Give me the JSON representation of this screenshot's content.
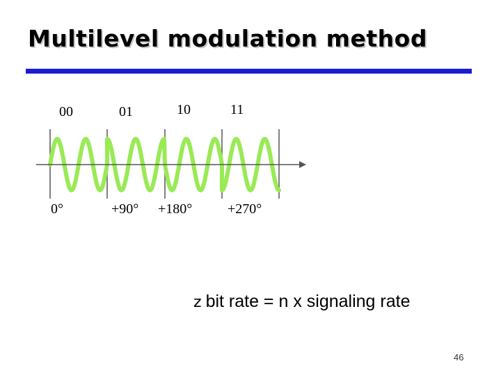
{
  "slide": {
    "title": "Multilevel modulation method",
    "bullet_glyph": "z",
    "bullet_text": "bit rate = n x signaling rate",
    "page_number": "46"
  },
  "diagram": {
    "bit_labels": [
      "00",
      "01",
      "10",
      "11"
    ],
    "phase_labels": [
      "0°",
      "+90°",
      "+180°",
      "+270°"
    ],
    "segment_phases_deg": [
      0,
      90,
      180,
      270
    ],
    "wave_color": "#99ea55",
    "axis_color": "#555555"
  }
}
